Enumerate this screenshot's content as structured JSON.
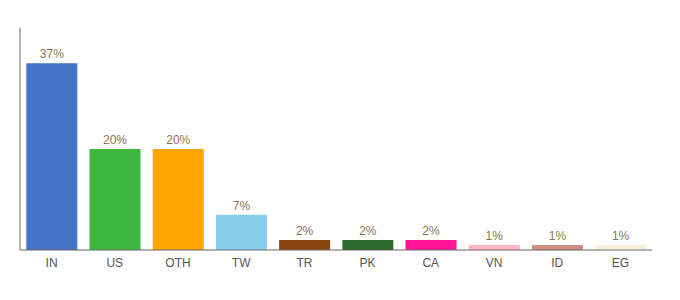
{
  "chart_data": {
    "type": "bar",
    "categories": [
      "IN",
      "US",
      "OTH",
      "TW",
      "TR",
      "PK",
      "CA",
      "VN",
      "ID",
      "EG"
    ],
    "values": [
      37,
      20,
      20,
      7,
      2,
      2,
      2,
      1,
      1,
      1
    ],
    "value_labels": [
      "37%",
      "20%",
      "20%",
      "7%",
      "2%",
      "2%",
      "2%",
      "1%",
      "1%",
      "1%"
    ],
    "data_labels": true,
    "colors": [
      "#4472C4",
      "#3CB93C",
      "#FFA500",
      "#87CEEB",
      "#8B4513",
      "#2D6A2D",
      "#FF1493",
      "#FFB6C1",
      "#CD9080",
      "#F5F0DC"
    ],
    "ylim": [
      0,
      44
    ],
    "tick_labels": "x",
    "grid": false
  }
}
